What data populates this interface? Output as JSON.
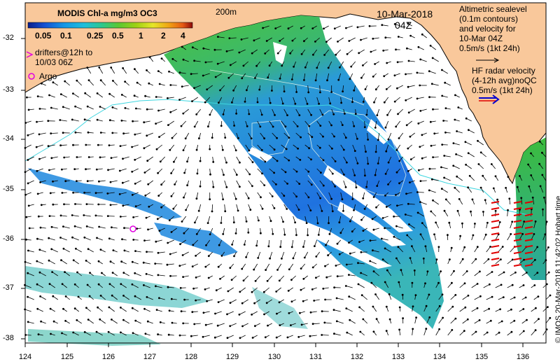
{
  "colorbar": {
    "title": "MODIS Chl-a mg/m3 OC3",
    "tick_labels": [
      "0.05",
      "0.1",
      "0.25",
      "0.5",
      "1",
      "2",
      "4"
    ]
  },
  "contour_label": "200m",
  "date_label": "10-Mar-2018",
  "time_label": "04Z",
  "altimetry_note": [
    "Altimetric sealevel",
    "(0.1m contours)",
    "and velocity for",
    "10-Mar 04Z",
    "0.5m/s (1kt 24h)"
  ],
  "hf_radar_note": [
    "HF radar velocity",
    "(4-12h avg)noQC",
    "0.5m/s (1kt 24h)"
  ],
  "drifters_label": [
    "drifters@12h to",
    "10/03 06Z"
  ],
  "argo_label": "Argo",
  "credit": "© IMOS 20-Mar-2018 11:42:02 Hobart time",
  "axes": {
    "x_ticks": [
      "124",
      "125",
      "126",
      "127",
      "128",
      "129",
      "130",
      "131",
      "132",
      "133",
      "134",
      "135",
      "136"
    ],
    "y_ticks": [
      "-32",
      "-33",
      "-34",
      "-35",
      "-36",
      "-37",
      "-38"
    ],
    "lon_range": [
      124,
      136.5
    ],
    "lat_range": [
      -38.1,
      -31.6
    ]
  },
  "colors": {
    "land": "#f9c89b",
    "colorbar": [
      "#0a1e8c",
      "#1450d2",
      "#1496e6",
      "#1ebedc",
      "#2dc88c",
      "#5ac832",
      "#a0d214",
      "#e6e628",
      "#f0a014",
      "#e65a14",
      "#c81414",
      "#8c0a0a"
    ],
    "argo": "#e000e0",
    "hf_radar": "#e00000",
    "hf_legend": "#0000d0"
  }
}
